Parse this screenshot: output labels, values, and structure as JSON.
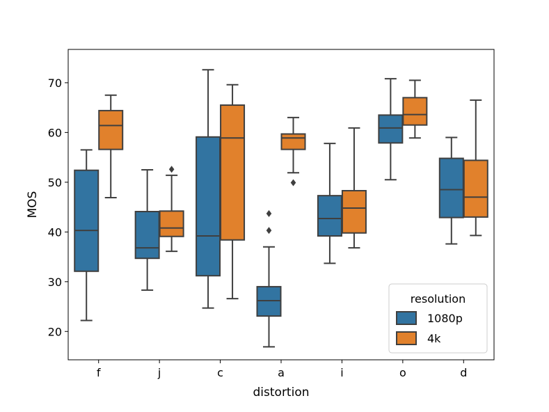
{
  "chart_data": {
    "type": "boxplot",
    "title": "",
    "xlabel": "distortion",
    "ylabel": "MOS",
    "ylim": [
      14.3,
      76.7
    ],
    "yticks": [
      "20",
      "30",
      "40",
      "50",
      "60",
      "70"
    ],
    "categories": [
      "f",
      "j",
      "c",
      "a",
      "i",
      "o",
      "d"
    ],
    "legend": {
      "title": "resolution",
      "position": "lower-right"
    },
    "series": [
      {
        "name": "1080p",
        "color": "#3274a1",
        "boxes": [
          {
            "whislo": 22.2,
            "q1": 32.1,
            "med": 40.3,
            "q3": 52.4,
            "whishi": 56.5,
            "fliers": []
          },
          {
            "whislo": 28.3,
            "q1": 34.7,
            "med": 36.8,
            "q3": 44.1,
            "whishi": 52.5,
            "fliers": []
          },
          {
            "whislo": 24.7,
            "q1": 31.2,
            "med": 39.2,
            "q3": 59.1,
            "whishi": 72.6,
            "fliers": []
          },
          {
            "whislo": 16.9,
            "q1": 23.1,
            "med": 26.2,
            "q3": 29.0,
            "whishi": 37.0,
            "fliers": [
              40.3,
              43.7
            ]
          },
          {
            "whislo": 33.7,
            "q1": 39.2,
            "med": 42.7,
            "q3": 47.3,
            "whishi": 57.8,
            "fliers": []
          },
          {
            "whislo": 50.5,
            "q1": 57.9,
            "med": 60.9,
            "q3": 63.5,
            "whishi": 70.8,
            "fliers": []
          },
          {
            "whislo": 37.6,
            "q1": 42.9,
            "med": 48.5,
            "q3": 54.8,
            "whishi": 59.0,
            "fliers": []
          }
        ]
      },
      {
        "name": "4k",
        "color": "#e1812c",
        "boxes": [
          {
            "whislo": 46.9,
            "q1": 56.6,
            "med": 61.4,
            "q3": 64.4,
            "whishi": 67.5,
            "fliers": []
          },
          {
            "whislo": 36.1,
            "q1": 39.1,
            "med": 40.8,
            "q3": 44.2,
            "whishi": 51.4,
            "fliers": [
              52.6
            ]
          },
          {
            "whislo": 26.6,
            "q1": 38.4,
            "med": 58.9,
            "q3": 65.5,
            "whishi": 69.6,
            "fliers": []
          },
          {
            "whislo": 51.9,
            "q1": 56.6,
            "med": 58.9,
            "q3": 59.7,
            "whishi": 63.0,
            "fliers": [
              49.9
            ]
          },
          {
            "whislo": 36.8,
            "q1": 39.8,
            "med": 44.8,
            "q3": 48.3,
            "whishi": 60.9,
            "fliers": []
          },
          {
            "whislo": 58.9,
            "q1": 61.5,
            "med": 63.6,
            "q3": 67.0,
            "whishi": 70.5,
            "fliers": []
          },
          {
            "whislo": 39.3,
            "q1": 43.0,
            "med": 47.0,
            "q3": 54.4,
            "whishi": 66.5,
            "fliers": []
          }
        ]
      }
    ]
  }
}
